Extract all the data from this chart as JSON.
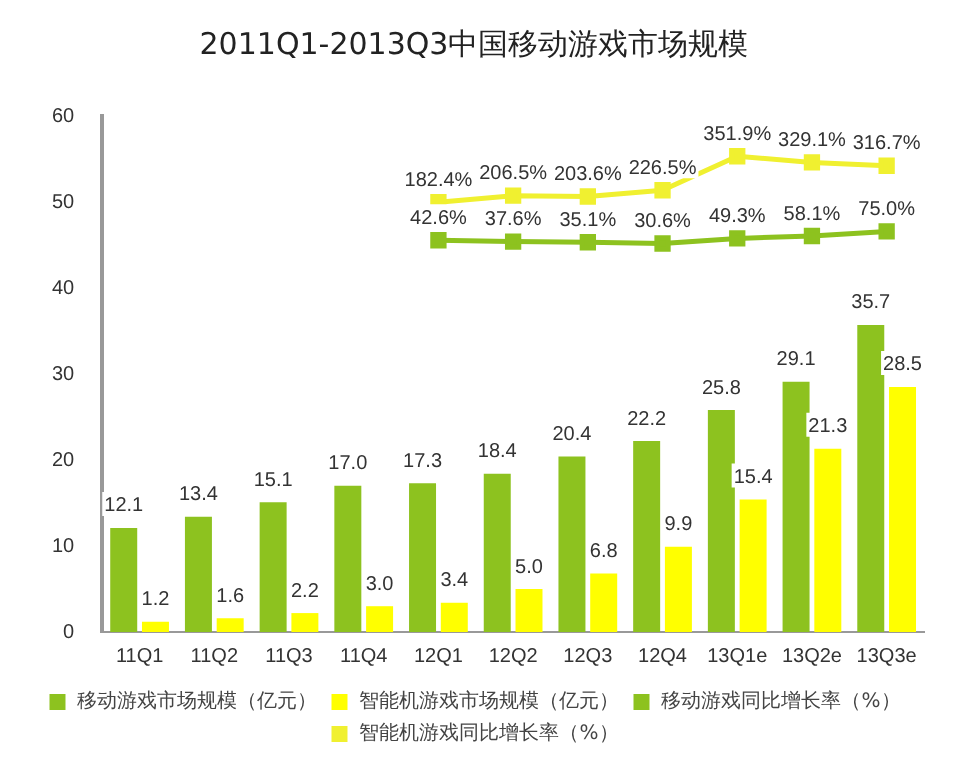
{
  "chart_data": {
    "type": "bar",
    "title": "2011Q1-2013Q3中国移动游戏市场规模",
    "categories": [
      "11Q1",
      "11Q2",
      "11Q3",
      "11Q4",
      "12Q1",
      "12Q2",
      "12Q3",
      "12Q4",
      "13Q1e",
      "13Q2e",
      "13Q3e"
    ],
    "series": [
      {
        "name": "移动游戏市场规模（亿元）",
        "color": "#8dc21f",
        "values": [
          12.1,
          13.4,
          15.1,
          17.0,
          17.3,
          18.4,
          20.4,
          22.2,
          25.8,
          29.1,
          35.7
        ],
        "value_labels": [
          "12.1",
          "13.4",
          "15.1",
          "17.0",
          "17.3",
          "18.4",
          "20.4",
          "22.2",
          "25.8",
          "29.1",
          "35.7"
        ]
      },
      {
        "name": "智能机游戏市场规模（亿元）",
        "color": "#ffff00",
        "values": [
          1.2,
          1.6,
          2.2,
          3.0,
          3.4,
          5.0,
          6.8,
          9.9,
          15.4,
          21.3,
          28.5
        ],
        "value_labels": [
          "1.2",
          "1.6",
          "2.2",
          "3.0",
          "3.4",
          "5.0",
          "6.8",
          "9.9",
          "15.4",
          "21.3",
          "28.5"
        ]
      },
      {
        "name": "移动游戏同比增长率（%）",
        "type": "line",
        "axis": "y2",
        "color": "#8dc21f",
        "values": [
          null,
          null,
          null,
          null,
          42.6,
          37.6,
          35.1,
          30.6,
          49.3,
          58.1,
          75.0
        ],
        "value_labels": [
          null,
          null,
          null,
          null,
          "42.6%",
          "37.6%",
          "35.1%",
          "30.6%",
          "49.3%",
          "58.1%",
          "75.0%"
        ]
      },
      {
        "name": "智能机游戏同比增长率（%）",
        "type": "line",
        "axis": "y2",
        "color": "#f0f030",
        "values": [
          null,
          null,
          null,
          null,
          182.4,
          206.5,
          203.6,
          226.5,
          351.9,
          329.1,
          316.7
        ],
        "value_labels": [
          null,
          null,
          null,
          null,
          "182.4%",
          "206.5%",
          "203.6%",
          "226.5%",
          "351.9%",
          "329.1%",
          "316.7%"
        ]
      }
    ],
    "ylim": [
      0,
      60
    ],
    "yticks": [
      0,
      10,
      20,
      30,
      40,
      50,
      60
    ],
    "y2lim": [
      -1400,
      500
    ],
    "grid": false,
    "legend": "bottom",
    "marker": "square",
    "line_style": "solid"
  }
}
